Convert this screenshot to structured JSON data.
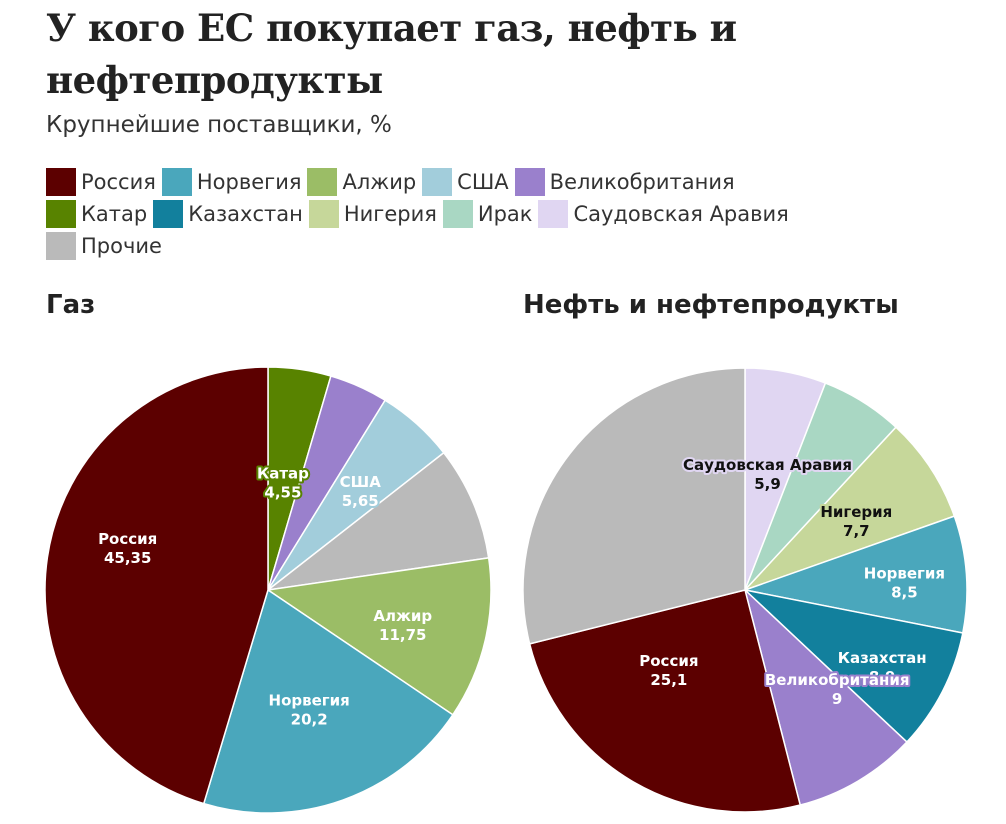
{
  "header": {
    "title": "У кого ЕС покупает газ, нефть и нефтепродукты",
    "subtitle": "Крупнейшие поставщики, %"
  },
  "legend": {
    "rows": [
      [
        {
          "label": "Россия",
          "color": "#5c0000"
        },
        {
          "label": "Норвегия",
          "color": "#4aa7bc"
        },
        {
          "label": "Алжир",
          "color": "#9bbd66"
        },
        {
          "label": "США",
          "color": "#a2cddb"
        },
        {
          "label": "Великобритания",
          "color": "#9a80cc"
        }
      ],
      [
        {
          "label": "Катар",
          "color": "#588300"
        },
        {
          "label": "Казахстан",
          "color": "#12809d"
        },
        {
          "label": "Нигерия",
          "color": "#c6d79a"
        },
        {
          "label": "Ирак",
          "color": "#a9d7c3"
        },
        {
          "label": "Саудовская Аравия",
          "color": "#e0d6f2"
        }
      ],
      [
        {
          "label": "Прочие",
          "color": "#bababa"
        }
      ]
    ]
  },
  "sections": {
    "gas_title": "Газ",
    "oil_title": "Нефть и нефтепродукты"
  },
  "chart_data": [
    {
      "type": "pie",
      "title": "Газ",
      "start": "12 o'clock, clockwise",
      "slices": [
        {
          "label": "Катар",
          "value": 4.55,
          "value_label": "4,55",
          "color": "#588300",
          "show_label": true,
          "text_color": "#ffffff"
        },
        {
          "label": "Великобритания",
          "value": 4.25,
          "value_label": "",
          "color": "#9a80cc",
          "show_label": false
        },
        {
          "label": "США",
          "value": 5.65,
          "value_label": "5,65",
          "color": "#a2cddb",
          "show_label": true,
          "text_color": "#ffffff"
        },
        {
          "label": "Прочие",
          "value": 8.25,
          "value_label": "",
          "color": "#bababa",
          "show_label": false
        },
        {
          "label": "Алжир",
          "value": 11.75,
          "value_label": "11,75",
          "color": "#9bbd66",
          "show_label": true,
          "text_color": "#ffffff"
        },
        {
          "label": "Норвегия",
          "value": 20.2,
          "value_label": "20,2",
          "color": "#4aa7bc",
          "show_label": true,
          "text_color": "#ffffff"
        },
        {
          "label": "Россия",
          "value": 45.35,
          "value_label": "45,35",
          "color": "#5c0000",
          "show_label": true,
          "text_color": "#ffffff"
        }
      ]
    },
    {
      "type": "pie",
      "title": "Нефть и нефтепродукты",
      "start": "12 o'clock, clockwise",
      "slices": [
        {
          "label": "Саудовская Аравия",
          "value": 5.9,
          "value_label": "5,9",
          "color": "#e0d6f2",
          "show_label": true,
          "text_color": "#111111"
        },
        {
          "label": "Ирак",
          "value": 6.0,
          "value_label": "",
          "color": "#a9d7c3",
          "show_label": false
        },
        {
          "label": "Нигерия",
          "value": 7.7,
          "value_label": "7,7",
          "color": "#c6d79a",
          "show_label": true,
          "text_color": "#111111"
        },
        {
          "label": "Норвегия",
          "value": 8.5,
          "value_label": "8,5",
          "color": "#4aa7bc",
          "show_label": true,
          "text_color": "#ffffff"
        },
        {
          "label": "Казахстан",
          "value": 8.9,
          "value_label": "8,9",
          "color": "#12809d",
          "show_label": true,
          "text_color": "#ffffff"
        },
        {
          "label": "Великобритания",
          "value": 9,
          "value_label": "9",
          "color": "#9a80cc",
          "show_label": true,
          "text_color": "#ffffff"
        },
        {
          "label": "Россия",
          "value": 25.1,
          "value_label": "25,1",
          "color": "#5c0000",
          "show_label": true,
          "text_color": "#ffffff"
        },
        {
          "label": "Прочие",
          "value": 28.9,
          "value_label": "",
          "color": "#bababa",
          "show_label": false
        }
      ]
    }
  ]
}
